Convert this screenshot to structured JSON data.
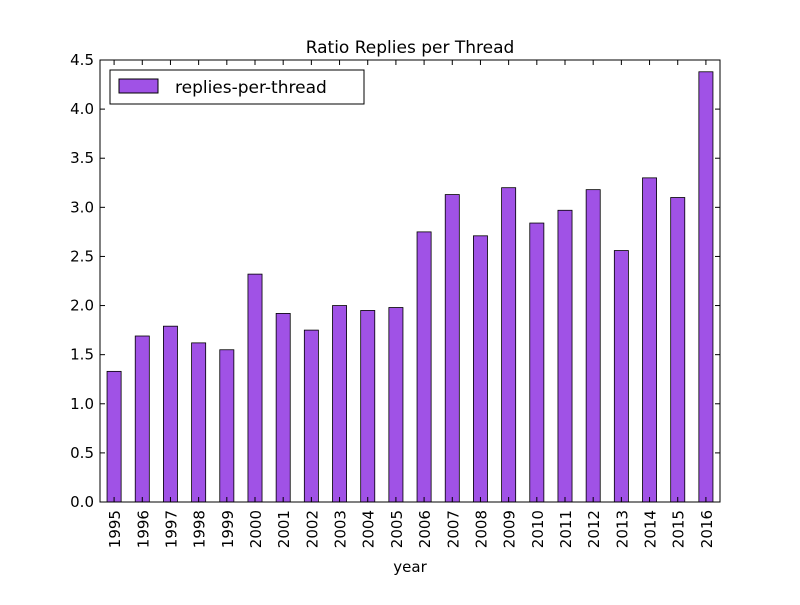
{
  "chart_data": {
    "type": "bar",
    "title": "Ratio Replies per Thread",
    "xlabel": "year",
    "ylabel": "",
    "ylim": [
      0,
      4.5
    ],
    "yticks": [
      "0.0",
      "0.5",
      "1.0",
      "1.5",
      "2.0",
      "2.5",
      "3.0",
      "3.5",
      "4.0",
      "4.5"
    ],
    "categories": [
      "1995",
      "1996",
      "1997",
      "1998",
      "1999",
      "2000",
      "2001",
      "2002",
      "2003",
      "2004",
      "2005",
      "2006",
      "2007",
      "2008",
      "2009",
      "2010",
      "2011",
      "2012",
      "2013",
      "2014",
      "2015",
      "2016"
    ],
    "series": [
      {
        "name": "replies-per-thread",
        "color": "#a052e6",
        "values": [
          1.33,
          1.69,
          1.79,
          1.62,
          1.55,
          2.32,
          1.92,
          1.75,
          2.0,
          1.95,
          1.98,
          2.75,
          3.13,
          2.71,
          3.2,
          2.84,
          2.97,
          3.18,
          2.56,
          3.3,
          3.1,
          4.38
        ]
      }
    ],
    "legend": "top-left",
    "grid": false
  }
}
